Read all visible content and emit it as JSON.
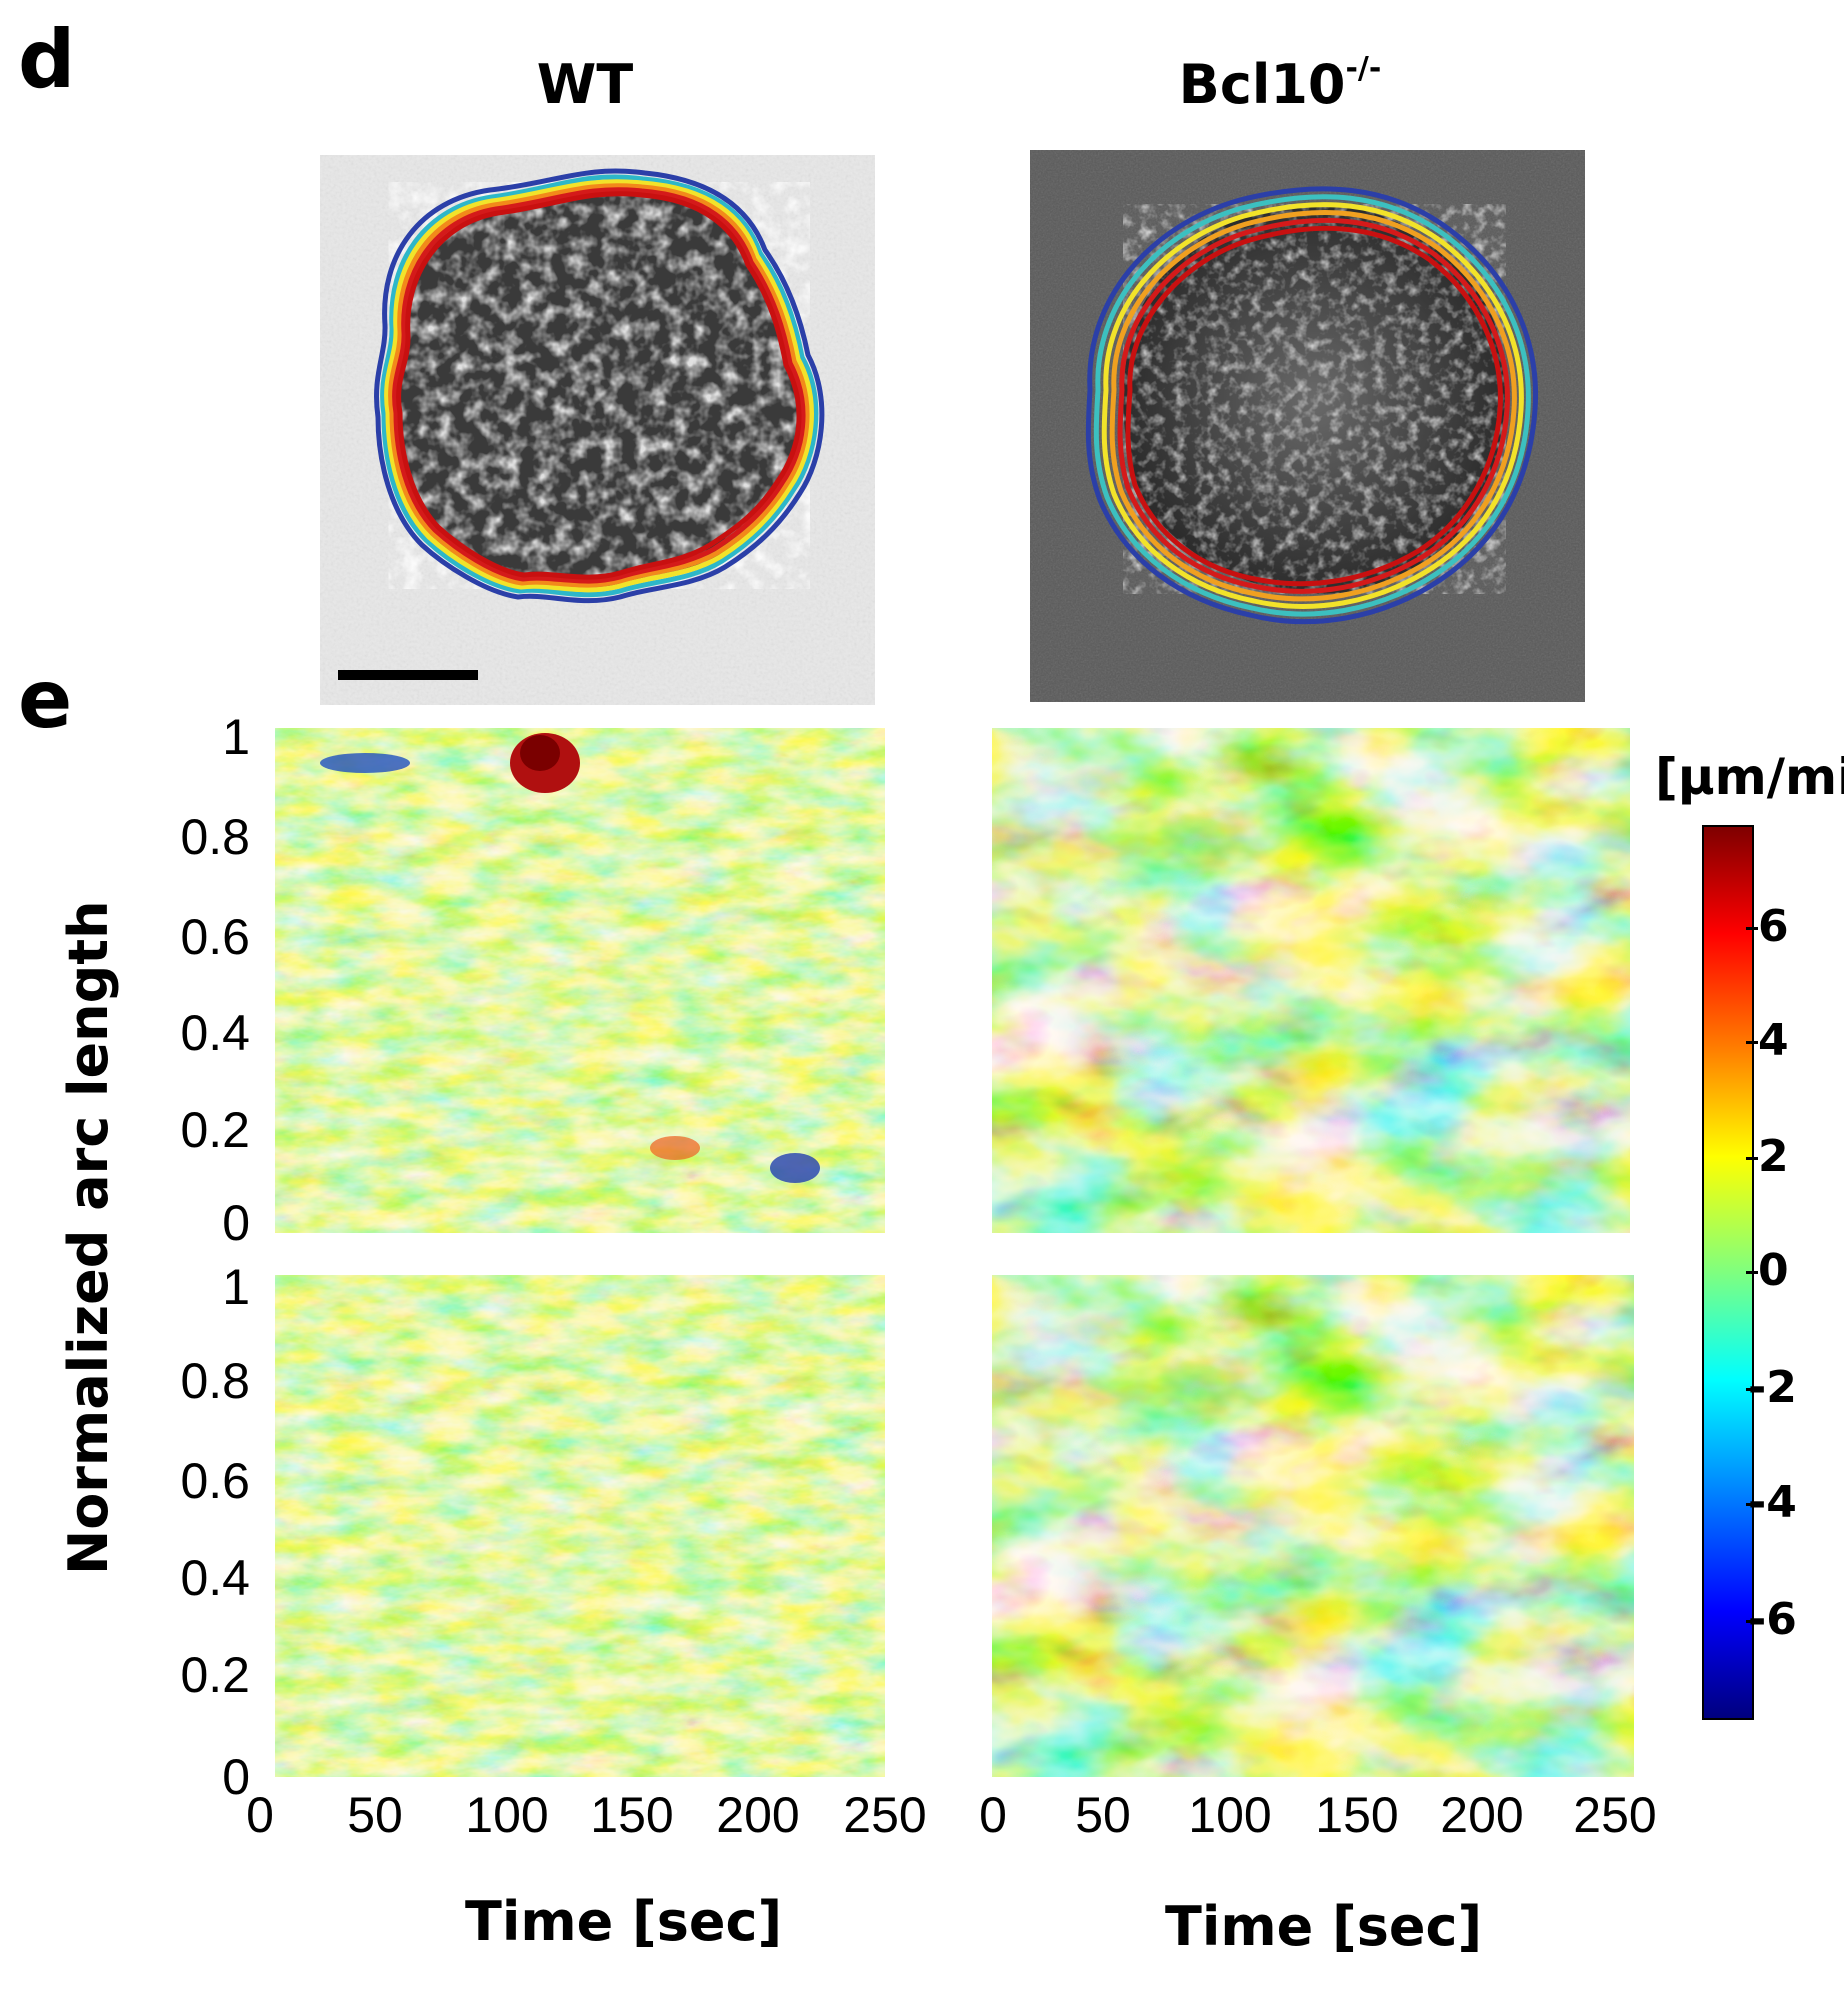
{
  "panels": {
    "d": {
      "letter": "d",
      "col_titles": {
        "wt": "WT",
        "ko_base": "Bcl10",
        "ko_sup": "-/-"
      }
    },
    "e": {
      "letter": "e"
    }
  },
  "chart_data": {
    "type": "heatmap",
    "title": "",
    "xlabel": "Time [sec]",
    "ylabel": "Normalized arc length",
    "xlim": [
      0,
      250
    ],
    "ylim": [
      0,
      1
    ],
    "x_ticks": [
      "0",
      "50",
      "100",
      "150",
      "200",
      "250"
    ],
    "y_ticks": [
      "0",
      "0.2",
      "0.4",
      "0.6",
      "0.8",
      "1"
    ],
    "colorbar": {
      "title": "[µm/min]",
      "range": [
        -7.5,
        7.5
      ],
      "ticks": [
        "6",
        "4",
        "2",
        "0",
        "-2",
        "-4",
        "-6"
      ],
      "colormap": [
        "#00007f",
        "#0000ff",
        "#007fff",
        "#00ffff",
        "#7fff7f",
        "#ffff00",
        "#ff7f00",
        "#ff0000",
        "#7f0000"
      ]
    },
    "maps": [
      {
        "condition": "WT"
      },
      {
        "condition": "Bcl10-/-"
      },
      {
        "condition": "WT"
      },
      {
        "condition": "Bcl10-/-"
      }
    ]
  }
}
